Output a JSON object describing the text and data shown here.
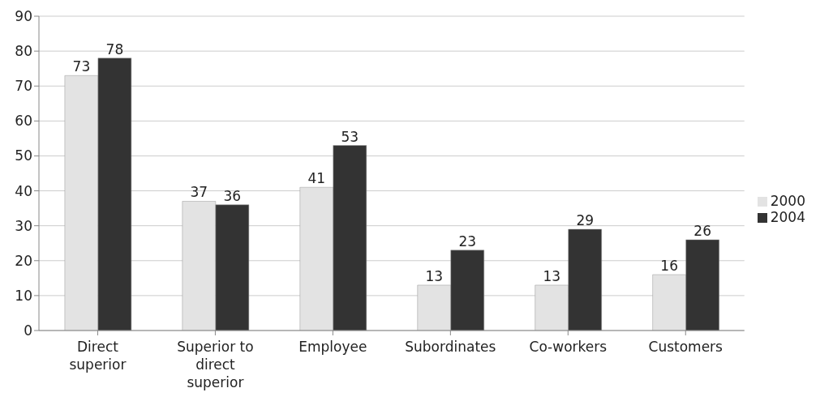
{
  "chart_data": {
    "type": "bar",
    "categories": [
      "Direct superior",
      "Superior to direct superior",
      "Employee",
      "Subordinates",
      "Co-workers",
      "Customers"
    ],
    "series": [
      {
        "name": "2000",
        "color": "#e3e3e3",
        "values": [
          73,
          37,
          41,
          13,
          13,
          16
        ]
      },
      {
        "name": "2004",
        "color": "#333333",
        "values": [
          78,
          36,
          53,
          23,
          29,
          26
        ]
      }
    ],
    "ylim": [
      0,
      90
    ],
    "yticks": [
      0,
      10,
      20,
      30,
      40,
      50,
      60,
      70,
      80,
      90
    ],
    "grid": "y",
    "legend": "right",
    "data_labels": true
  }
}
